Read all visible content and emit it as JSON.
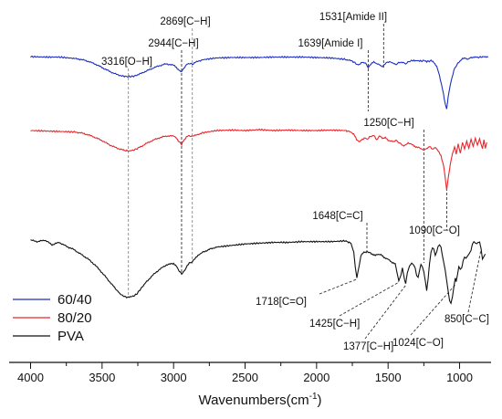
{
  "chart_data": {
    "type": "line",
    "title": "",
    "xlabel": "Wavenumbers(cm",
    "xlabel_sup": "-1",
    "xlabel_suffix": ")",
    "ylabel": "",
    "xlim": [
      4150,
      780
    ],
    "x_reversed": true,
    "y_axis_shown": false,
    "grid": false,
    "legend_placement": "bottom-left",
    "x_ticks": [
      4000,
      3500,
      3000,
      2500,
      2000,
      1500,
      1000
    ],
    "x_tick_labels": [
      "4000",
      "3500",
      "3000",
      "2500",
      "2000",
      "1500",
      "1000"
    ],
    "series": [
      {
        "name": "60/40",
        "color": "#1f2fbf",
        "x": [
          4000,
          3900,
          3800,
          3700,
          3650,
          3600,
          3550,
          3500,
          3450,
          3400,
          3350,
          3316,
          3280,
          3250,
          3200,
          3150,
          3100,
          3050,
          3000,
          2980,
          2960,
          2944,
          2930,
          2910,
          2890,
          2869,
          2850,
          2800,
          2700,
          2600,
          2500,
          2400,
          2300,
          2200,
          2100,
          2000,
          1900,
          1800,
          1750,
          1720,
          1700,
          1680,
          1660,
          1639,
          1620,
          1600,
          1580,
          1560,
          1545,
          1531,
          1515,
          1490,
          1460,
          1440,
          1425,
          1400,
          1377,
          1350,
          1320,
          1300,
          1280,
          1250,
          1230,
          1200,
          1180,
          1160,
          1140,
          1120,
          1100,
          1090,
          1080,
          1060,
          1040,
          1024,
          1000,
          980,
          960,
          940,
          920,
          900,
          880,
          850,
          820,
          800
        ],
        "y": [
          0,
          0.1,
          0.1,
          0.4,
          0.6,
          1.0,
          1.6,
          2.4,
          3.2,
          3.9,
          4.3,
          4.4,
          4.3,
          4.0,
          3.3,
          2.6,
          2.0,
          1.6,
          1.9,
          2.4,
          3.0,
          3.3,
          2.6,
          1.8,
          1.5,
          1.7,
          1.3,
          0.7,
          0.3,
          0.2,
          0.2,
          0.2,
          0.1,
          0.1,
          0.1,
          0.2,
          0.3,
          0.6,
          1.0,
          1.6,
          1.8,
          1.2,
          1.4,
          2.4,
          1.6,
          1.2,
          1.5,
          1.8,
          2.2,
          2.0,
          1.4,
          1.1,
          1.5,
          1.7,
          1.4,
          1.2,
          1.6,
          1.0,
          0.8,
          0.9,
          1.0,
          0.9,
          1.1,
          0.9,
          1.2,
          2.2,
          4.2,
          7.0,
          10.5,
          11.5,
          8.8,
          5.5,
          3.0,
          2.0,
          1.0,
          0.5,
          0.3,
          0.6,
          0.2,
          0.1,
          0.2,
          0.1,
          0.0,
          0.1
        ]
      },
      {
        "name": "80/20",
        "color": "#e8262b",
        "x": [
          4000,
          3900,
          3800,
          3700,
          3650,
          3600,
          3550,
          3500,
          3450,
          3400,
          3350,
          3316,
          3280,
          3250,
          3200,
          3150,
          3100,
          3050,
          3000,
          2980,
          2960,
          2944,
          2930,
          2910,
          2890,
          2869,
          2850,
          2800,
          2700,
          2600,
          2500,
          2400,
          2300,
          2200,
          2100,
          2000,
          1900,
          1800,
          1760,
          1740,
          1720,
          1700,
          1680,
          1660,
          1648,
          1630,
          1600,
          1580,
          1560,
          1540,
          1520,
          1500,
          1480,
          1460,
          1440,
          1425,
          1410,
          1390,
          1377,
          1360,
          1340,
          1320,
          1300,
          1280,
          1250,
          1230,
          1210,
          1190,
          1170,
          1150,
          1130,
          1110,
          1100,
          1090,
          1080,
          1065,
          1050,
          1035,
          1024,
          1010,
          995,
          980,
          965,
          950,
          935,
          920,
          905,
          890,
          875,
          860,
          850,
          840,
          830,
          820,
          810
        ],
        "y": [
          0,
          0.1,
          0.2,
          0.3,
          0.5,
          0.9,
          1.5,
          2.2,
          3.1,
          3.8,
          4.3,
          4.5,
          4.3,
          3.9,
          3.0,
          2.2,
          1.6,
          1.2,
          1.2,
          1.7,
          2.5,
          3.0,
          2.2,
          1.4,
          1.1,
          1.3,
          1.1,
          0.5,
          0.0,
          -0.1,
          0.0,
          -0.2,
          0.0,
          -0.1,
          0.0,
          0.0,
          -0.1,
          0.0,
          0.3,
          0.8,
          2.0,
          2.4,
          2.0,
          1.5,
          2.0,
          1.4,
          1.1,
          2.0,
          1.2,
          1.7,
          1.5,
          2.2,
          2.2,
          2.5,
          2.0,
          2.7,
          3.0,
          3.3,
          3.1,
          2.7,
          2.9,
          3.4,
          3.6,
          3.8,
          4.3,
          4.0,
          3.4,
          4.2,
          3.6,
          4.5,
          5.5,
          8.0,
          10.5,
          13.0,
          10.5,
          7.5,
          5.0,
          3.5,
          5.2,
          3.0,
          4.8,
          2.6,
          4.2,
          2.2,
          3.8,
          2.0,
          3.5,
          1.6,
          3.2,
          1.8,
          3.0,
          4.0,
          2.0,
          3.8,
          2.6
        ]
      },
      {
        "name": "PVA",
        "color": "#111111",
        "x": [
          4000,
          3950,
          3900,
          3850,
          3800,
          3750,
          3700,
          3650,
          3600,
          3550,
          3500,
          3450,
          3400,
          3370,
          3340,
          3316,
          3290,
          3260,
          3230,
          3200,
          3150,
          3100,
          3050,
          3000,
          2980,
          2960,
          2944,
          2930,
          2920,
          2910,
          2890,
          2869,
          2850,
          2830,
          2800,
          2750,
          2700,
          2600,
          2500,
          2400,
          2300,
          2200,
          2100,
          2000,
          1900,
          1800,
          1760,
          1740,
          1730,
          1718,
          1705,
          1690,
          1670,
          1648,
          1630,
          1610,
          1590,
          1570,
          1550,
          1530,
          1510,
          1490,
          1470,
          1450,
          1440,
          1425,
          1410,
          1400,
          1390,
          1377,
          1365,
          1350,
          1335,
          1320,
          1310,
          1300,
          1290,
          1280,
          1270,
          1260,
          1250,
          1240,
          1230,
          1220,
          1210,
          1200,
          1190,
          1180,
          1170,
          1160,
          1150,
          1140,
          1130,
          1120,
          1110,
          1100,
          1090,
          1080,
          1070,
          1060,
          1050,
          1040,
          1030,
          1024,
          1015,
          1005,
          995,
          985,
          975,
          965,
          955,
          945,
          935,
          920,
          910,
          900,
          890,
          880,
          870,
          860,
          850,
          840,
          830,
          820
        ],
        "y": [
          0,
          0.2,
          0.0,
          0.6,
          0.3,
          0.8,
          1.2,
          1.8,
          2.4,
          3.2,
          4.2,
          5.3,
          6.4,
          7.0,
          7.3,
          7.4,
          7.3,
          7.0,
          6.3,
          5.6,
          4.6,
          3.8,
          3.2,
          3.0,
          3.4,
          4.0,
          4.4,
          4.1,
          3.8,
          3.4,
          3.0,
          2.8,
          2.4,
          2.0,
          1.6,
          1.2,
          0.9,
          0.7,
          0.5,
          0.4,
          0.3,
          0.3,
          0.2,
          0.2,
          0.2,
          0.1,
          0.4,
          1.5,
          3.5,
          4.8,
          3.5,
          2.0,
          1.6,
          1.5,
          1.6,
          1.8,
          2.0,
          1.8,
          1.9,
          2.2,
          2.4,
          2.6,
          2.9,
          3.1,
          4.0,
          5.2,
          4.5,
          3.6,
          4.6,
          5.6,
          4.2,
          3.3,
          3.0,
          3.3,
          3.6,
          4.5,
          4.8,
          4.0,
          3.2,
          3.4,
          4.0,
          5.2,
          6.6,
          5.0,
          3.0,
          1.5,
          1.0,
          1.2,
          2.0,
          1.5,
          0.8,
          0.6,
          0.9,
          2.0,
          3.0,
          4.0,
          5.2,
          6.5,
          7.8,
          8.2,
          7.4,
          6.0,
          4.8,
          5.4,
          4.5,
          3.5,
          3.8,
          3.5,
          2.6,
          2.2,
          2.4,
          2.1,
          1.8,
          1.3,
          0.5,
          0.2,
          0.4,
          0.5,
          0.3,
          0.2,
          1.0,
          2.5,
          2.2,
          1.8
        ]
      }
    ],
    "annotations": [
      {
        "text": "3316[O−H]",
        "x": 3316,
        "type": "vline-label-above",
        "line": "dashed"
      },
      {
        "text": "2944[C−H]",
        "x": 2944,
        "type": "vline-label-above",
        "line": "dashed"
      },
      {
        "text": "2869[C−H]",
        "x": 2869,
        "type": "vline-label-above",
        "line": "dashed"
      },
      {
        "text": "1639[Amide I]",
        "x": 1639,
        "type": "vline-label-above",
        "line": "dashed"
      },
      {
        "text": "1531[Amide II]",
        "x": 1531,
        "type": "vline-label-above",
        "line": "dashed"
      },
      {
        "text": "1648[C=C]",
        "x": 1648,
        "type": "vline-label-above",
        "line": "dashed"
      },
      {
        "text": "1250[C−H]",
        "x": 1250,
        "type": "vline-label-above",
        "line": "dashed"
      },
      {
        "text": "1090[C−O]",
        "x": 1090,
        "type": "vline-label-below",
        "line": "dashed"
      },
      {
        "text": "1718[C=O]",
        "x": 1718,
        "type": "leader"
      },
      {
        "text": "1425[C−H]",
        "x": 1425,
        "type": "leader"
      },
      {
        "text": "1377[C−H]",
        "x": 1377,
        "type": "leader"
      },
      {
        "text": "1024[C−O]",
        "x": 1024,
        "type": "leader"
      },
      {
        "text": "850[C−C]",
        "x": 850,
        "type": "leader"
      }
    ]
  }
}
